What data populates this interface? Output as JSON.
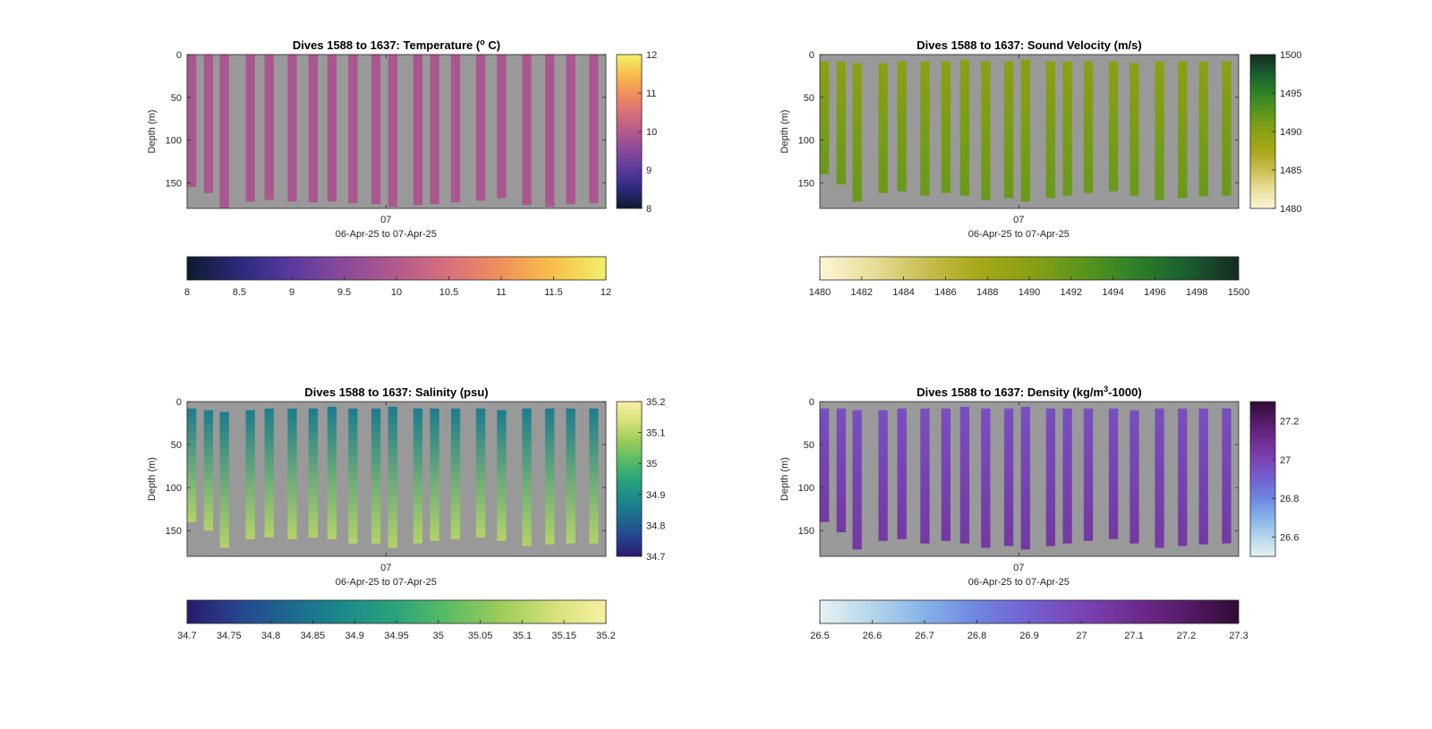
{
  "chart_data": [
    {
      "type": "heatmap",
      "variable": "temperature",
      "title_main": "Dives 1588 to 1637: Temperature (",
      "title_sup": "o",
      "title_end": " C)",
      "xlabel": "06-Apr-25 to 07-Apr-25",
      "ylabel": "Depth (m)",
      "xticks": [
        "07"
      ],
      "yticks": [
        0,
        50,
        100,
        150
      ],
      "ylim": [
        0,
        180
      ],
      "colormap": [
        "#0d1a2e",
        "#2a2a7a",
        "#5a3a9e",
        "#8a4a9a",
        "#b25a8c",
        "#d8707a",
        "#f0905a",
        "#f7c04a",
        "#f2f06a"
      ],
      "clim": [
        8,
        12
      ],
      "side_colorbar_ticks": [
        8,
        9,
        10,
        11,
        12
      ],
      "bottom_colorbar_ticks": [
        8,
        8.5,
        9,
        9.5,
        10,
        10.5,
        11,
        11.5,
        12
      ],
      "profile_value": 9.9,
      "casts": [
        [
          0,
          155
        ],
        [
          0,
          162
        ],
        [
          0,
          183
        ],
        [
          0,
          172
        ],
        [
          0,
          170
        ],
        [
          0,
          172
        ],
        [
          0,
          173
        ],
        [
          0,
          172
        ],
        [
          0,
          174
        ],
        [
          0,
          175
        ],
        [
          0,
          178
        ],
        [
          0,
          176
        ],
        [
          0,
          175
        ],
        [
          0,
          173
        ],
        [
          0,
          171
        ],
        [
          0,
          168
        ],
        [
          0,
          176
        ],
        [
          0,
          178
        ],
        [
          0,
          175
        ],
        [
          0,
          174
        ]
      ]
    },
    {
      "type": "heatmap",
      "variable": "sound_velocity",
      "title_main": "Dives 1588 to 1637: Sound Velocity (m/s)",
      "title_sup": "",
      "title_end": "",
      "xlabel": "06-Apr-25 to 07-Apr-25",
      "ylabel": "Depth (m)",
      "xticks": [
        "07"
      ],
      "yticks": [
        0,
        50,
        100,
        150
      ],
      "ylim": [
        0,
        180
      ],
      "colormap": [
        "#fdf6d6",
        "#e8de9a",
        "#c9be52",
        "#a8a818",
        "#8aa014",
        "#5c961c",
        "#2e8228",
        "#1a5e30",
        "#152a20"
      ],
      "clim": [
        1480,
        1500
      ],
      "side_colorbar_ticks": [
        1480,
        1485,
        1490,
        1495,
        1500
      ],
      "bottom_colorbar_ticks": [
        1480,
        1482,
        1484,
        1486,
        1488,
        1490,
        1492,
        1494,
        1496,
        1498,
        1500
      ],
      "profile_top": 1490.0,
      "profile_bottom": 1491.8,
      "casts": [
        [
          8,
          140
        ],
        [
          8,
          152
        ],
        [
          10,
          172
        ],
        [
          10,
          162
        ],
        [
          8,
          160
        ],
        [
          8,
          165
        ],
        [
          8,
          162
        ],
        [
          6,
          165
        ],
        [
          8,
          170
        ],
        [
          8,
          168
        ],
        [
          6,
          172
        ],
        [
          8,
          168
        ],
        [
          8,
          165
        ],
        [
          8,
          162
        ],
        [
          8,
          160
        ],
        [
          10,
          165
        ],
        [
          8,
          170
        ],
        [
          8,
          168
        ],
        [
          8,
          166
        ],
        [
          8,
          165
        ]
      ]
    },
    {
      "type": "heatmap",
      "variable": "salinity",
      "title_main": "Dives 1588 to 1637: Salinity (psu)",
      "title_sup": "",
      "title_end": "",
      "xlabel": "06-Apr-25 to 07-Apr-25",
      "ylabel": "Depth (m)",
      "xticks": [
        "07"
      ],
      "yticks": [
        0,
        50,
        100,
        150
      ],
      "ylim": [
        0,
        180
      ],
      "colormap": [
        "#2a1a6e",
        "#26458e",
        "#1d6a90",
        "#1b8a8a",
        "#2aa47a",
        "#5cbc64",
        "#9ccc5a",
        "#d6e07a",
        "#f8f0a2"
      ],
      "clim": [
        34.7,
        35.2
      ],
      "side_colorbar_ticks": [
        34.7,
        34.8,
        34.9,
        35,
        35.1,
        35.2
      ],
      "bottom_colorbar_ticks": [
        34.7,
        34.75,
        34.8,
        34.85,
        34.9,
        34.95,
        35,
        35.05,
        35.1,
        35.15,
        35.2
      ],
      "profile_top": 34.86,
      "profile_bottom": 35.1,
      "casts": [
        [
          8,
          140
        ],
        [
          10,
          150
        ],
        [
          12,
          170
        ],
        [
          10,
          160
        ],
        [
          8,
          158
        ],
        [
          8,
          160
        ],
        [
          8,
          158
        ],
        [
          6,
          160
        ],
        [
          8,
          165
        ],
        [
          8,
          165
        ],
        [
          6,
          170
        ],
        [
          8,
          165
        ],
        [
          8,
          162
        ],
        [
          8,
          160
        ],
        [
          8,
          158
        ],
        [
          10,
          162
        ],
        [
          8,
          168
        ],
        [
          8,
          166
        ],
        [
          8,
          165
        ],
        [
          8,
          165
        ]
      ]
    },
    {
      "type": "heatmap",
      "variable": "density",
      "title_main": "Dives 1588 to 1637: Density (kg/m",
      "title_sup": "3",
      "title_end": "-1000)",
      "xlabel": "06-Apr-25 to 07-Apr-25",
      "ylabel": "Depth (m)",
      "xticks": [
        "07"
      ],
      "yticks": [
        0,
        50,
        100,
        150
      ],
      "ylim": [
        0,
        180
      ],
      "colormap": [
        "#e6f2f2",
        "#b4d6ea",
        "#86b2e8",
        "#6e86e0",
        "#7460d2",
        "#7a44b4",
        "#6e2c90",
        "#561a68",
        "#2e0c34"
      ],
      "clim": [
        26.5,
        27.3
      ],
      "side_colorbar_ticks": [
        26.6,
        26.8,
        27,
        27.2
      ],
      "bottom_colorbar_ticks": [
        26.5,
        26.6,
        26.7,
        26.8,
        26.9,
        27,
        27.1,
        27.2,
        27.3
      ],
      "profile_top": 26.96,
      "profile_bottom": 27.05,
      "casts": [
        [
          8,
          140
        ],
        [
          8,
          152
        ],
        [
          10,
          172
        ],
        [
          10,
          162
        ],
        [
          8,
          160
        ],
        [
          8,
          165
        ],
        [
          8,
          162
        ],
        [
          6,
          165
        ],
        [
          8,
          170
        ],
        [
          8,
          168
        ],
        [
          6,
          172
        ],
        [
          8,
          168
        ],
        [
          8,
          165
        ],
        [
          8,
          162
        ],
        [
          8,
          160
        ],
        [
          10,
          165
        ],
        [
          8,
          170
        ],
        [
          8,
          168
        ],
        [
          8,
          166
        ],
        [
          8,
          165
        ]
      ]
    }
  ]
}
